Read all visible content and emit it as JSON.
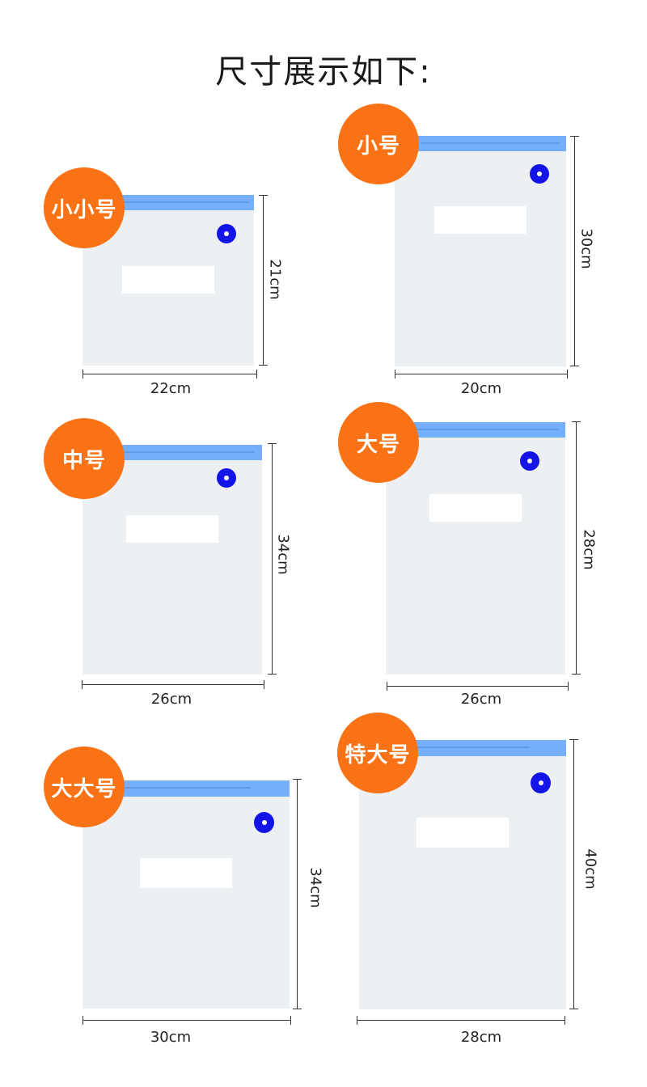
{
  "title": "尺寸展示如下:",
  "colors": {
    "badge": "#f97316",
    "zipper": "#75aefb",
    "valve": "#1414e6",
    "bag": "#ecf0f3"
  },
  "bags": [
    {
      "size_name": "小小号",
      "width": "22cm",
      "height": "21cm"
    },
    {
      "size_name": "小号",
      "width": "20cm",
      "height": "30cm"
    },
    {
      "size_name": "中号",
      "width": "26cm",
      "height": "34cm"
    },
    {
      "size_name": "大号",
      "width": "26cm",
      "height": "28cm"
    },
    {
      "size_name": "大大号",
      "width": "30cm",
      "height": "34cm"
    },
    {
      "size_name": "特大号",
      "width": "28cm",
      "height": "40cm"
    }
  ]
}
